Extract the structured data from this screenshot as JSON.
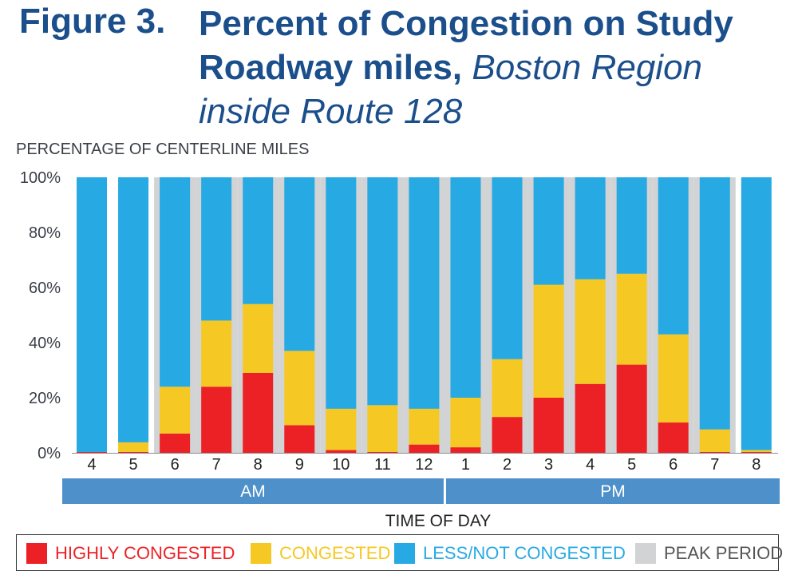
{
  "figure": {
    "label": "Figure 3.",
    "title_bold": "Percent of Congestion on Study Roadway miles,",
    "title_italic": "Boston Region inside Route 128"
  },
  "colors": {
    "highly": "#ec2126",
    "congested": "#f6c823",
    "less": "#27a9e3",
    "peak": "#d2d3d5",
    "band": "#4e90c9",
    "title": "#1b4f8c"
  },
  "chart_data": {
    "type": "bar",
    "stacked": true,
    "ylabel": "PERCENTAGE OF CENTERLINE MILES",
    "xlabel": "TIME OF DAY",
    "ylim": [
      0,
      100
    ],
    "yticks": [
      "0%",
      "20%",
      "40%",
      "60%",
      "80%",
      "100%"
    ],
    "categories": [
      "4",
      "5",
      "6",
      "7",
      "8",
      "9",
      "10",
      "11",
      "12",
      "1",
      "2",
      "3",
      "4",
      "5",
      "6",
      "7",
      "8"
    ],
    "periods": [
      {
        "label": "AM",
        "start": 0,
        "end": 8
      },
      {
        "label": "PM",
        "start": 9,
        "end": 16
      }
    ],
    "peak_period": [
      false,
      false,
      true,
      true,
      true,
      true,
      true,
      true,
      true,
      true,
      true,
      true,
      true,
      true,
      true,
      true,
      false
    ],
    "series": [
      {
        "name": "HIGHLY CONGESTED",
        "values": [
          0.3,
          0.3,
          7,
          24,
          29,
          10,
          1,
          0.3,
          3,
          2,
          13,
          20,
          25,
          32,
          11,
          0.3,
          0.3
        ]
      },
      {
        "name": "CONGESTED",
        "values": [
          0,
          3.5,
          17,
          24,
          25,
          27,
          15,
          17,
          13,
          18,
          21,
          41,
          38,
          33,
          32,
          8.2,
          0.7
        ]
      },
      {
        "name": "LESS/NOT CONGESTED",
        "values": [
          99.7,
          96.2,
          76,
          52,
          46,
          63,
          84,
          82.7,
          84,
          80,
          66,
          39,
          37,
          35,
          57,
          91.5,
          99
        ]
      }
    ],
    "legend": [
      {
        "label": "HIGHLY CONGESTED",
        "color_key": "highly"
      },
      {
        "label": "CONGESTED",
        "color_key": "congested"
      },
      {
        "label": "LESS/NOT CONGESTED",
        "color_key": "less"
      },
      {
        "label": "PEAK PERIOD",
        "color_key": "peak"
      }
    ]
  }
}
